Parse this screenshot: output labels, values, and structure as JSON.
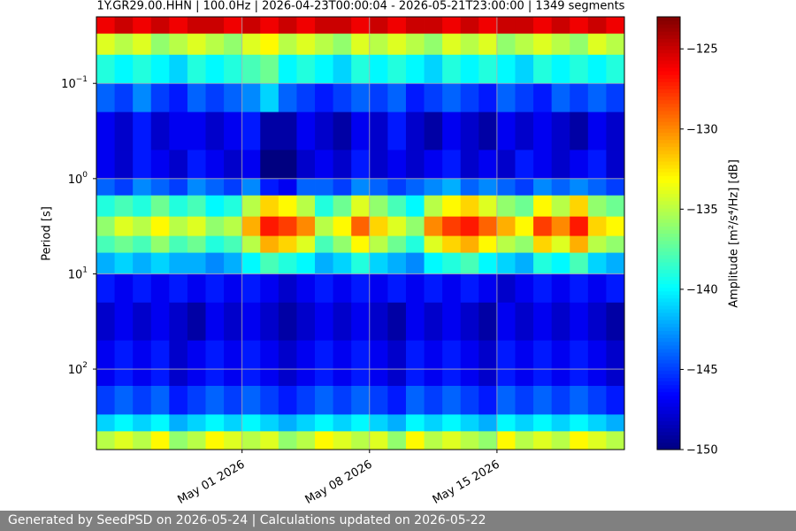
{
  "chart_data": {
    "type": "spectrogram",
    "title": "1Y.GR29.00.HHN | 100.0Hz | 2026-04-23T00:00:04 - 2026-05-21T23:00:00 | 1349 segments",
    "ylabel": "Period [s]",
    "colorbar_label": "Amplitude [m²/s⁴/Hz] [dB]",
    "colormap": "jet",
    "yscale": "log",
    "yinverted": true,
    "grid": true,
    "x": [
      "2026-04-23",
      "2026-04-24",
      "2026-04-25",
      "2026-04-26",
      "2026-04-27",
      "2026-04-28",
      "2026-04-29",
      "2026-04-30",
      "2026-05-01",
      "2026-05-02",
      "2026-05-03",
      "2026-05-04",
      "2026-05-05",
      "2026-05-06",
      "2026-05-07",
      "2026-05-08",
      "2026-05-09",
      "2026-05-10",
      "2026-05-11",
      "2026-05-12",
      "2026-05-13",
      "2026-05-14",
      "2026-05-15",
      "2026-05-16",
      "2026-05-17",
      "2026-05-18",
      "2026-05-19",
      "2026-05-20",
      "2026-05-21"
    ],
    "xlim": [
      "2026-04-23",
      "2026-05-22"
    ],
    "xticks": [
      {
        "value": "2026-05-01",
        "label": "May 01 2026"
      },
      {
        "value": "2026-05-08",
        "label": "May 08 2026"
      },
      {
        "value": "2026-05-15",
        "label": "May 15 2026"
      }
    ],
    "yedges": [
      0.02,
      0.03,
      0.05,
      0.1,
      0.2,
      0.5,
      1,
      1.5,
      2.5,
      4,
      6,
      10,
      20,
      50,
      150,
      300,
      450,
      700
    ],
    "ylim": [
      0.02,
      700
    ],
    "yticks": [
      {
        "value": 0.1,
        "label": "10",
        "power": "−1"
      },
      {
        "value": 1,
        "label": "10",
        "power": "0"
      },
      {
        "value": 10,
        "label": "10",
        "power": "1"
      },
      {
        "value": 100,
        "label": "10",
        "power": "2"
      }
    ],
    "zlim": [
      -150,
      -123
    ],
    "zticks": [
      {
        "value": -125,
        "label": "−125"
      },
      {
        "value": -130,
        "label": "−130"
      },
      {
        "value": -135,
        "label": "−135"
      },
      {
        "value": -140,
        "label": "−140"
      },
      {
        "value": -145,
        "label": "−145"
      },
      {
        "value": -150,
        "label": "−150"
      }
    ],
    "values": [
      [
        -126,
        -125,
        -126,
        -125,
        -126,
        -125,
        -125,
        -126,
        -125,
        -126,
        -125,
        -126,
        -125,
        -125,
        -126,
        -125,
        -126,
        -125,
        -125,
        -126,
        -125,
        -126,
        -125,
        -125,
        -126,
        -125,
        -126,
        -125,
        -126
      ],
      [
        -134,
        -135,
        -134,
        -136,
        -135,
        -134,
        -135,
        -136,
        -134,
        -133,
        -135,
        -134,
        -135,
        -136,
        -134,
        -135,
        -134,
        -135,
        -136,
        -134,
        -135,
        -134,
        -136,
        -135,
        -134,
        -135,
        -136,
        -134,
        -135
      ],
      [
        -139,
        -140,
        -139,
        -140,
        -141,
        -139,
        -140,
        -139,
        -138,
        -137,
        -140,
        -139,
        -140,
        -141,
        -139,
        -140,
        -139,
        -140,
        -141,
        -139,
        -140,
        -139,
        -140,
        -141,
        -139,
        -140,
        -139,
        -140,
        -139
      ],
      [
        -144,
        -145,
        -143,
        -145,
        -146,
        -144,
        -145,
        -144,
        -143,
        -141,
        -144,
        -145,
        -146,
        -145,
        -144,
        -145,
        -144,
        -146,
        -145,
        -144,
        -145,
        -146,
        -144,
        -145,
        -146,
        -144,
        -145,
        -144,
        -145
      ],
      [
        -147,
        -148,
        -146,
        -148,
        -147,
        -147,
        -148,
        -147,
        -146,
        -149,
        -149,
        -147,
        -148,
        -149,
        -147,
        -148,
        -146,
        -148,
        -149,
        -147,
        -148,
        -149,
        -147,
        -148,
        -147,
        -148,
        -149,
        -147,
        -148
      ],
      [
        -147,
        -148,
        -146,
        -147,
        -148,
        -146,
        -147,
        -148,
        -147,
        -150,
        -150,
        -148,
        -147,
        -148,
        -146,
        -148,
        -147,
        -148,
        -147,
        -146,
        -148,
        -147,
        -148,
        -146,
        -147,
        -148,
        -147,
        -146,
        -148
      ],
      [
        -144,
        -145,
        -143,
        -144,
        -145,
        -143,
        -144,
        -145,
        -143,
        -146,
        -147,
        -144,
        -144,
        -145,
        -143,
        -144,
        -145,
        -144,
        -143,
        -142,
        -144,
        -143,
        -144,
        -145,
        -143,
        -144,
        -143,
        -144,
        -145
      ],
      [
        -139,
        -138,
        -139,
        -137,
        -139,
        -138,
        -140,
        -139,
        -135,
        -132,
        -133,
        -135,
        -139,
        -137,
        -134,
        -136,
        -138,
        -140,
        -135,
        -133,
        -132,
        -134,
        -136,
        -137,
        -133,
        -135,
        -132,
        -136,
        -137
      ],
      [
        -136,
        -134,
        -135,
        -133,
        -135,
        -134,
        -136,
        -135,
        -131,
        -127,
        -128,
        -130,
        -135,
        -133,
        -129,
        -132,
        -134,
        -136,
        -130,
        -128,
        -127,
        -129,
        -131,
        -133,
        -128,
        -130,
        -127,
        -132,
        -133
      ],
      [
        -138,
        -137,
        -138,
        -136,
        -138,
        -137,
        -139,
        -138,
        -135,
        -131,
        -132,
        -134,
        -138,
        -136,
        -133,
        -135,
        -137,
        -139,
        -134,
        -132,
        -131,
        -133,
        -135,
        -136,
        -132,
        -134,
        -131,
        -135,
        -136
      ],
      [
        -142,
        -141,
        -142,
        -141,
        -142,
        -142,
        -143,
        -142,
        -140,
        -138,
        -139,
        -140,
        -142,
        -141,
        -139,
        -141,
        -142,
        -143,
        -140,
        -139,
        -138,
        -140,
        -141,
        -142,
        -139,
        -140,
        -138,
        -141,
        -142
      ],
      [
        -146,
        -147,
        -146,
        -147,
        -146,
        -147,
        -146,
        -147,
        -146,
        -147,
        -148,
        -147,
        -146,
        -147,
        -146,
        -147,
        -146,
        -147,
        -146,
        -147,
        -146,
        -147,
        -148,
        -147,
        -146,
        -147,
        -146,
        -147,
        -146
      ],
      [
        -148,
        -147,
        -148,
        -147,
        -148,
        -149,
        -147,
        -148,
        -147,
        -148,
        -149,
        -148,
        -147,
        -148,
        -147,
        -148,
        -149,
        -147,
        -148,
        -147,
        -148,
        -149,
        -147,
        -148,
        -147,
        -148,
        -147,
        -148,
        -149
      ],
      [
        -147,
        -146,
        -147,
        -146,
        -148,
        -147,
        -146,
        -147,
        -146,
        -147,
        -148,
        -147,
        -146,
        -147,
        -146,
        -147,
        -148,
        -146,
        -147,
        -146,
        -147,
        -148,
        -146,
        -147,
        -146,
        -147,
        -146,
        -147,
        -148
      ],
      [
        -145,
        -144,
        -145,
        -144,
        -146,
        -145,
        -144,
        -145,
        -144,
        -145,
        -146,
        -145,
        -144,
        -145,
        -144,
        -145,
        -146,
        -144,
        -145,
        -144,
        -145,
        -146,
        -144,
        -145,
        -144,
        -145,
        -144,
        -145,
        -146
      ],
      [
        -141,
        -140,
        -141,
        -140,
        -142,
        -141,
        -140,
        -141,
        -140,
        -141,
        -142,
        -141,
        -140,
        -141,
        -140,
        -141,
        -142,
        -140,
        -141,
        -140,
        -141,
        -142,
        -140,
        -141,
        -140,
        -141,
        -140,
        -141,
        -142
      ],
      [
        -135,
        -134,
        -135,
        -133,
        -136,
        -135,
        -133,
        -134,
        -135,
        -134,
        -136,
        -135,
        -133,
        -134,
        -135,
        -134,
        -136,
        -133,
        -135,
        -134,
        -135,
        -136,
        -133,
        -135,
        -134,
        -135,
        -133,
        -134,
        -135
      ]
    ]
  },
  "footer": {
    "text": "Generated by SeedPSD on 2026-05-24 | Calculations updated on 2026-05-22"
  }
}
